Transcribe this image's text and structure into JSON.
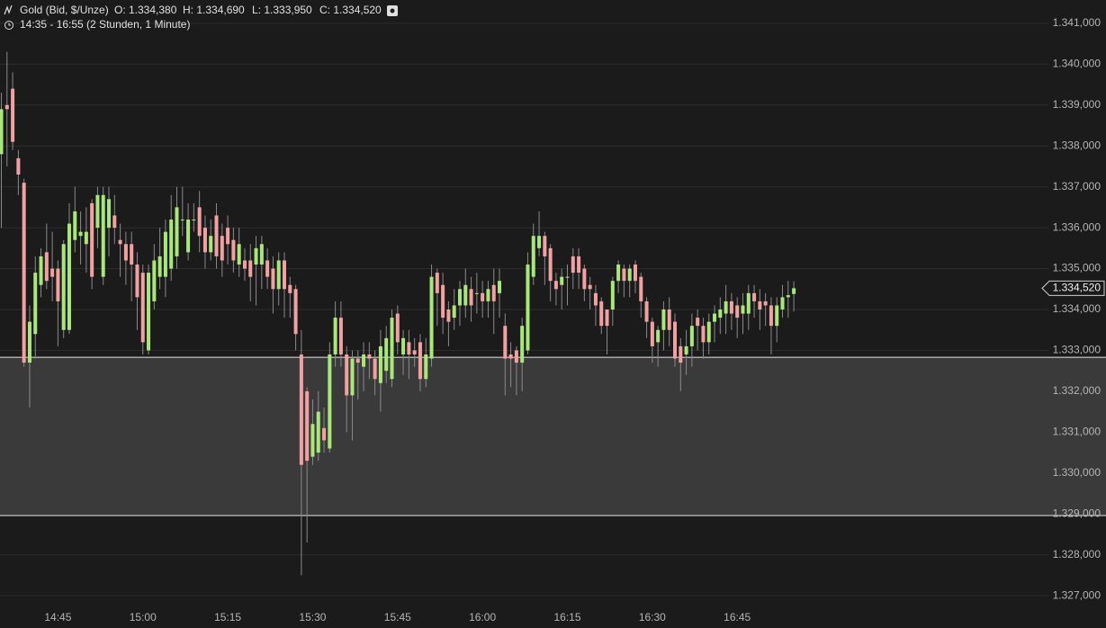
{
  "chart_data": {
    "type": "candlestick",
    "header": {
      "instrument": "Gold (Bid, $/Unze)",
      "open": "O: 1.334,380",
      "high": "H: 1.334,690",
      "low": "L: 1.333,950",
      "close": "C: 1.334,520",
      "period": "14:35 - 16:55 (2 Stunden, 1 Minute)"
    },
    "categories": [
      null,
      null,
      null,
      null,
      null,
      null,
      null,
      null,
      null,
      null,
      "14:45",
      null,
      null,
      null,
      null,
      null,
      null,
      null,
      null,
      null,
      null,
      null,
      null,
      null,
      null,
      "15:00",
      null,
      null,
      null,
      null,
      null,
      null,
      null,
      null,
      null,
      null,
      null,
      null,
      null,
      null,
      "15:15",
      null,
      null,
      null,
      null,
      null,
      null,
      null,
      null,
      null,
      null,
      null,
      null,
      null,
      null,
      "15:30",
      null,
      null,
      null,
      null,
      null,
      null,
      null,
      null,
      null,
      null,
      null,
      null,
      null,
      null,
      "15:45",
      null,
      null,
      null,
      null,
      null,
      null,
      null,
      null,
      null,
      null,
      null,
      null,
      null,
      null,
      "16:00",
      null,
      null,
      null,
      null,
      null,
      null,
      null,
      null,
      null,
      null,
      null,
      null,
      null,
      null,
      "16:15",
      null,
      null,
      null,
      null,
      null,
      null,
      null,
      null,
      null,
      null,
      null,
      null,
      null,
      null,
      "16:30",
      null,
      null,
      null,
      null,
      null,
      null,
      null,
      null,
      null,
      null,
      null,
      null,
      null,
      null,
      "16:45",
      null,
      null,
      null,
      null,
      null,
      null,
      null,
      null,
      null,
      null
    ],
    "open": [
      1337.8,
      1339.0,
      1339.4,
      1337.7,
      1337.1,
      1332.7,
      1333.4,
      1334.6,
      1335.4,
      1335.0,
      1335.0,
      1333.5,
      1333.5,
      1335.7,
      1335.8,
      1335.6,
      1336.6,
      1336.0,
      1334.8,
      1336.0,
      1336.3,
      1335.7,
      1335.6,
      1335.6,
      1335.1,
      1334.9,
      1333.0,
      1334.2,
      1334.8,
      1334.8,
      1335.0,
      1335.3,
      1336.2,
      1335.4,
      1336.2,
      1336.5,
      1336.0,
      1335.4,
      1336.3,
      1335.8,
      1336.0,
      1335.7,
      1335.1,
      1335.2,
      1335.2,
      1335.1,
      1335.1,
      1335.2,
      1335.0,
      1334.5,
      1335.2,
      1334.6,
      1334.5,
      1332.9,
      1332.0,
      1330.4,
      1330.5,
      1331.1,
      1330.6,
      1332.9,
      1333.8,
      1332.9,
      1331.9,
      1332.8,
      1332.6,
      1332.9,
      1332.8,
      1332.2,
      1332.5,
      1332.3,
      1333.9,
      1332.9,
      1333.2,
      1333.0,
      1333.2,
      1332.3,
      1332.8,
      1334.9,
      1334.6,
      1334.0,
      1333.8,
      1334.1,
      1334.1,
      1334.5,
      1334.4,
      1334.4,
      1334.2,
      1334.6,
      1334.4,
      1333.6,
      1332.9,
      1333.0,
      1332.7,
      1333.0,
      1334.8,
      1335.5,
      1335.8,
      1335.5,
      1334.7,
      1334.6,
      1334.8,
      1335.3,
      1335.3,
      1335.0,
      1334.6,
      1334.4,
      1334.2,
      1334.0,
      1334.0,
      1334.7,
      1335.0,
      1334.7,
      1335.1,
      1334.8,
      1334.2,
      1333.7,
      1333.2,
      1333.5,
      1334.0,
      1333.7,
      1333.1,
      1332.9,
      1333.1,
      1333.8,
      1333.6,
      1333.2,
      1333.7,
      1333.8,
      1333.9,
      1334.2,
      1334.1,
      1333.9,
      1333.9,
      1334.4,
      1334.2,
      1334.2,
      1334.1,
      1333.6,
      1334.0,
      1334.3,
      1334.38
    ],
    "high": [
      1339.3,
      1340.3,
      1339.8,
      1337.9,
      1337.2,
      1334.1,
      1335.3,
      1335.5,
      1336.1,
      1335.9,
      1335.2,
      1335.7,
      1336.6,
      1337.0,
      1336.4,
      1336.5,
      1336.7,
      1337.0,
      1337.0,
      1337.0,
      1336.8,
      1336.1,
      1335.9,
      1335.9,
      1335.4,
      1335.1,
      1335.1,
      1335.6,
      1336.0,
      1336.2,
      1336.8,
      1337.0,
      1337.0,
      1336.6,
      1336.6,
      1336.9,
      1336.3,
      1336.2,
      1336.6,
      1336.1,
      1336.3,
      1336.0,
      1336.0,
      1335.5,
      1335.6,
      1335.8,
      1335.8,
      1335.5,
      1335.3,
      1335.4,
      1335.4,
      1334.8,
      1334.6,
      1333.5,
      1332.1,
      1331.8,
      1332.0,
      1331.6,
      1333.2,
      1334.2,
      1334.2,
      1333.1,
      1333.0,
      1333.0,
      1333.2,
      1333.2,
      1333.0,
      1333.5,
      1333.6,
      1334.0,
      1334.1,
      1333.5,
      1333.5,
      1333.3,
      1333.4,
      1333.3,
      1335.1,
      1335.0,
      1334.9,
      1334.2,
      1334.5,
      1334.7,
      1335.0,
      1334.8,
      1334.9,
      1334.7,
      1334.7,
      1335.0,
      1335.0,
      1333.9,
      1333.2,
      1333.1,
      1333.8,
      1335.4,
      1336.1,
      1336.4,
      1335.9,
      1335.6,
      1334.9,
      1335.0,
      1335.1,
      1335.5,
      1335.5,
      1335.1,
      1334.8,
      1334.6,
      1334.3,
      1334.0,
      1334.8,
      1335.2,
      1335.1,
      1335.1,
      1335.2,
      1334.9,
      1334.3,
      1333.8,
      1333.6,
      1334.2,
      1334.3,
      1333.9,
      1333.3,
      1333.5,
      1333.9,
      1334.0,
      1333.8,
      1333.9,
      1334.1,
      1334.3,
      1334.6,
      1334.4,
      1334.3,
      1334.4,
      1334.6,
      1334.6,
      1334.5,
      1334.4,
      1334.3,
      1334.3,
      1334.6,
      1334.7,
      1334.69
    ],
    "low": [
      1336.0,
      1337.5,
      1337.9,
      1336.8,
      1332.6,
      1331.6,
      1332.8,
      1334.3,
      1334.5,
      1334.2,
      1333.1,
      1333.3,
      1333.4,
      1335.4,
      1335.1,
      1334.9,
      1334.5,
      1335.5,
      1334.6,
      1335.3,
      1335.6,
      1334.8,
      1334.6,
      1334.2,
      1333.5,
      1332.9,
      1332.9,
      1334.0,
      1334.5,
      1334.3,
      1334.7,
      1335.0,
      1335.8,
      1335.2,
      1335.9,
      1335.4,
      1335.0,
      1335.2,
      1335.0,
      1334.8,
      1335.1,
      1334.9,
      1334.8,
      1334.7,
      1334.2,
      1334.1,
      1334.5,
      1334.5,
      1333.9,
      1334.1,
      1333.8,
      1333.8,
      1333.0,
      1327.5,
      1328.3,
      1330.2,
      1330.3,
      1330.5,
      1330.5,
      1332.6,
      1332.6,
      1331.0,
      1330.8,
      1331.8,
      1332.0,
      1332.3,
      1331.9,
      1331.5,
      1332.2,
      1332.1,
      1332.9,
      1332.4,
      1332.3,
      1332.6,
      1332.0,
      1332.1,
      1332.6,
      1333.6,
      1333.4,
      1333.1,
      1333.5,
      1333.6,
      1333.8,
      1333.7,
      1333.9,
      1333.8,
      1333.8,
      1333.4,
      1333.8,
      1331.9,
      1332.1,
      1331.9,
      1332.0,
      1332.9,
      1334.6,
      1335.3,
      1334.6,
      1334.2,
      1334.1,
      1334.0,
      1334.1,
      1334.5,
      1334.5,
      1334.2,
      1334.0,
      1333.6,
      1333.4,
      1332.9,
      1333.6,
      1334.4,
      1334.3,
      1334.3,
      1334.4,
      1333.8,
      1333.3,
      1332.7,
      1332.6,
      1333.0,
      1333.1,
      1332.6,
      1332.0,
      1332.4,
      1332.6,
      1333.0,
      1332.8,
      1332.9,
      1333.2,
      1333.4,
      1333.4,
      1333.5,
      1333.3,
      1333.4,
      1333.5,
      1333.8,
      1333.5,
      1333.6,
      1332.9,
      1333.2,
      1333.8,
      1333.8,
      1333.95
    ],
    "close": [
      1338.9,
      1338.9,
      1338.1,
      1337.3,
      1332.7,
      1333.7,
      1334.9,
      1335.3,
      1334.7,
      1334.8,
      1334.2,
      1335.6,
      1336.1,
      1336.4,
      1335.9,
      1335.9,
      1334.8,
      1336.8,
      1336.8,
      1336.7,
      1336.0,
      1335.6,
      1335.2,
      1335.1,
      1334.3,
      1333.2,
      1334.9,
      1335.2,
      1335.3,
      1335.9,
      1336.2,
      1336.5,
      1336.2,
      1336.2,
      1336.2,
      1335.8,
      1335.4,
      1335.8,
      1335.3,
      1335.2,
      1335.6,
      1335.2,
      1335.6,
      1335.0,
      1334.8,
      1335.5,
      1335.6,
      1334.8,
      1334.5,
      1335.2,
      1334.5,
      1334.4,
      1333.4,
      1330.2,
      1330.3,
      1331.2,
      1331.5,
      1330.8,
      1332.9,
      1333.8,
      1332.9,
      1331.9,
      1332.8,
      1332.7,
      1332.9,
      1332.8,
      1332.3,
      1333.1,
      1333.3,
      1333.8,
      1333.2,
      1333.3,
      1332.9,
      1332.9,
      1332.3,
      1332.9,
      1334.8,
      1334.4,
      1333.8,
      1333.7,
      1334.1,
      1334.5,
      1334.6,
      1334.1,
      1334.4,
      1334.2,
      1334.5,
      1334.2,
      1334.7,
      1332.8,
      1332.8,
      1332.7,
      1333.6,
      1335.1,
      1335.8,
      1335.8,
      1335.3,
      1334.7,
      1334.5,
      1334.8,
      1334.8,
      1334.9,
      1334.9,
      1334.5,
      1334.5,
      1334.1,
      1333.6,
      1333.6,
      1334.7,
      1335.1,
      1334.7,
      1335.0,
      1334.7,
      1334.2,
      1333.7,
      1333.1,
      1333.5,
      1334.0,
      1333.5,
      1332.8,
      1332.7,
      1333.1,
      1333.6,
      1333.6,
      1333.2,
      1333.7,
      1333.9,
      1334.0,
      1334.2,
      1333.9,
      1333.8,
      1334.1,
      1334.4,
      1334.2,
      1334.0,
      1334.1,
      1333.6,
      1334.1,
      1334.3,
      1334.35,
      1334.52
    ],
    "up_color": "#a8e878",
    "down_color": "#f2a0a0",
    "zone": [
      1328.96,
      1332.83
    ],
    "last_price": {
      "value": 1334.52,
      "label": "1.334,520"
    },
    "ylim": [
      1326.21,
      1341.57
    ],
    "yticks": [
      {
        "value": 1327,
        "label": "1.327,000"
      },
      {
        "value": 1328,
        "label": "1.328,000"
      },
      {
        "value": 1329,
        "label": "1.329,000"
      },
      {
        "value": 1330,
        "label": "1.330,000"
      },
      {
        "value": 1331,
        "label": "1.331,000"
      },
      {
        "value": 1332,
        "label": "1.332,000"
      },
      {
        "value": 1333,
        "label": "1.333,000"
      },
      {
        "value": 1334,
        "label": "1.334,000"
      },
      {
        "value": 1335,
        "label": "1.335,000"
      },
      {
        "value": 1336,
        "label": "1.336,000"
      },
      {
        "value": 1337,
        "label": "1.337,000"
      },
      {
        "value": 1338,
        "label": "1.338,000"
      },
      {
        "value": 1339,
        "label": "1.339,000"
      },
      {
        "value": 1340,
        "label": "1.340,000"
      },
      {
        "value": 1341,
        "label": "1.341,000"
      }
    ],
    "grid": true
  }
}
